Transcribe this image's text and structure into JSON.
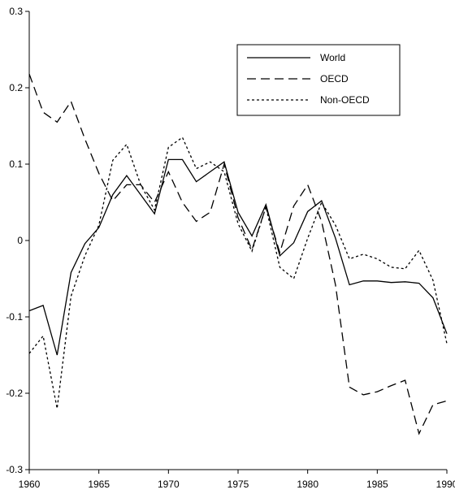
{
  "chart_data": {
    "type": "line",
    "title": "",
    "xlabel": "",
    "ylabel": "",
    "xlim": [
      1960,
      1990
    ],
    "ylim": [
      -0.3,
      0.3
    ],
    "grid": false,
    "legend_position": "top-right",
    "x_ticks": [
      "1960",
      "1965",
      "1970",
      "1975",
      "1980",
      "1985",
      "1990"
    ],
    "y_ticks": [
      "0.3",
      "0.2",
      "0.1",
      "0",
      "-0.1",
      "-0.2",
      "-0.3"
    ],
    "x": [
      1960,
      1961,
      1962,
      1963,
      1964,
      1965,
      1966,
      1967,
      1968,
      1969,
      1970,
      1971,
      1972,
      1973,
      1974,
      1975,
      1976,
      1977,
      1978,
      1979,
      1980,
      1981,
      1982,
      1983,
      1984,
      1985,
      1986,
      1987,
      1988,
      1989,
      1990
    ],
    "series": [
      {
        "name": "World",
        "dash": "solid",
        "values": [
          -0.092,
          -0.085,
          -0.15,
          -0.042,
          -0.004,
          0.017,
          0.06,
          0.085,
          0.06,
          0.035,
          0.106,
          0.106,
          0.077,
          0.09,
          0.103,
          0.037,
          0.006,
          0.047,
          -0.02,
          -0.003,
          0.038,
          0.052,
          0.003,
          -0.058,
          -0.053,
          -0.053,
          -0.055,
          -0.054,
          -0.056,
          -0.075,
          -0.122
        ]
      },
      {
        "name": "OECD",
        "dash": "long",
        "values": [
          0.218,
          0.168,
          0.155,
          0.182,
          0.133,
          0.088,
          0.052,
          0.073,
          0.073,
          0.05,
          0.09,
          0.05,
          0.025,
          0.037,
          0.1,
          0.03,
          -0.012,
          0.044,
          -0.016,
          0.045,
          0.073,
          0.025,
          -0.058,
          -0.192,
          -0.202,
          -0.198,
          -0.19,
          -0.183,
          -0.253,
          -0.215,
          -0.21
        ]
      },
      {
        "name": "Non-OECD",
        "dash": "short",
        "values": [
          -0.148,
          -0.125,
          -0.22,
          -0.073,
          -0.02,
          0.02,
          0.105,
          0.126,
          0.073,
          0.04,
          0.122,
          0.135,
          0.094,
          0.103,
          0.09,
          0.022,
          -0.014,
          0.044,
          -0.035,
          -0.05,
          0.003,
          0.05,
          0.02,
          -0.024,
          -0.018,
          -0.024,
          -0.035,
          -0.037,
          -0.013,
          -0.052,
          -0.135
        ]
      }
    ]
  }
}
